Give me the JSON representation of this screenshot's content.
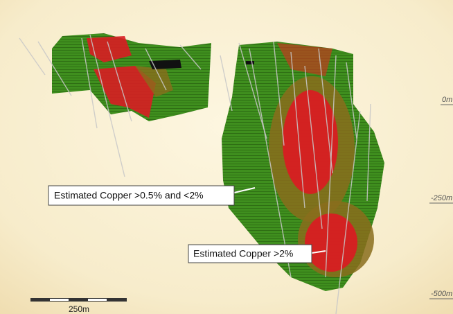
{
  "labels": {
    "low_grade": "Estimated Copper >0.5% and <2%",
    "high_grade": "Estimated Copper >2%"
  },
  "depth_labels": [
    "0m",
    "-250m",
    "-500m"
  ],
  "scale_bar": "250m"
}
